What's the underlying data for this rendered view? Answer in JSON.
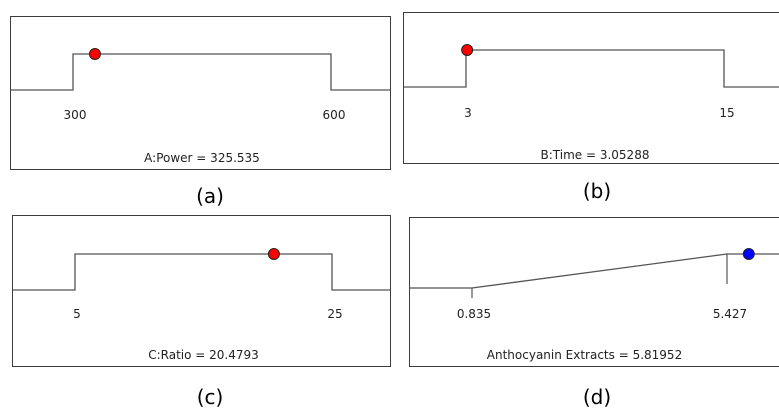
{
  "chart_data": [
    {
      "type": "line",
      "panel_label": "(a)",
      "caption": "A:Power = 325.535",
      "factor": "A:Power",
      "current_value": 325.535,
      "tick_labels": [
        "300",
        "600"
      ],
      "goal_shape": "in-range",
      "low": 300,
      "high": 600,
      "marker_color": "#ff0000"
    },
    {
      "type": "line",
      "panel_label": "(b)",
      "caption": "B:Time = 3.05288",
      "factor": "B:Time",
      "current_value": 3.05288,
      "tick_labels": [
        "3",
        "15"
      ],
      "goal_shape": "in-range",
      "low": 3,
      "high": 15,
      "marker_color": "#ff0000"
    },
    {
      "type": "line",
      "panel_label": "(c)",
      "caption": "C:Ratio = 20.4793",
      "factor": "C:Ratio",
      "current_value": 20.4793,
      "tick_labels": [
        "5",
        "25"
      ],
      "goal_shape": "in-range",
      "low": 5,
      "high": 25,
      "marker_color": "#ff0000"
    },
    {
      "type": "line",
      "panel_label": "(d)",
      "caption": "Anthocyanin Extracts = 5.81952",
      "factor": "Anthocyanin Extracts",
      "current_value": 5.81952,
      "tick_labels": [
        "0.835",
        "5.427"
      ],
      "goal_shape": "maximize",
      "low": 0.835,
      "high": 5.427,
      "marker_color": "#0000ff"
    }
  ]
}
